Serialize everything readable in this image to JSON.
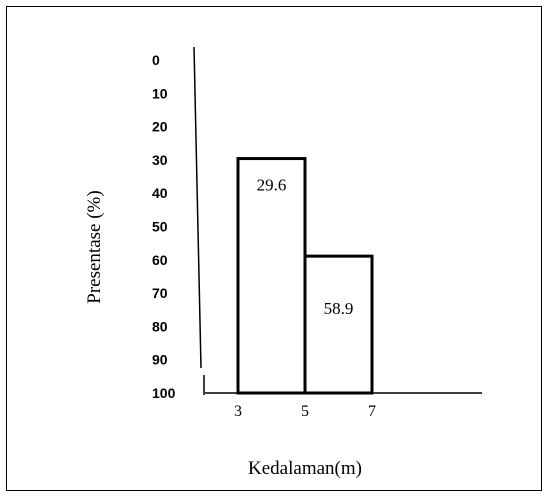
{
  "chart_data": {
    "type": "bar",
    "title": "",
    "ylabel": "Presentase (%)",
    "xlabel": "Kedalaman(m)",
    "y_axis": {
      "inverted": true,
      "ticks": [
        "0",
        "10",
        "20",
        "30",
        "40",
        "50",
        "60",
        "70",
        "80",
        "90",
        "100"
      ],
      "ylim": [
        0,
        100
      ]
    },
    "x_axis": {
      "ticks": [
        "3",
        "5",
        "7"
      ]
    },
    "bars": [
      {
        "x_start": 3,
        "x_end": 5,
        "top": 29.6,
        "label": "29.6"
      },
      {
        "x_start": 5,
        "x_end": 7,
        "top": 58.9,
        "label": "58.9"
      }
    ],
    "grid": false,
    "legend": "none"
  }
}
